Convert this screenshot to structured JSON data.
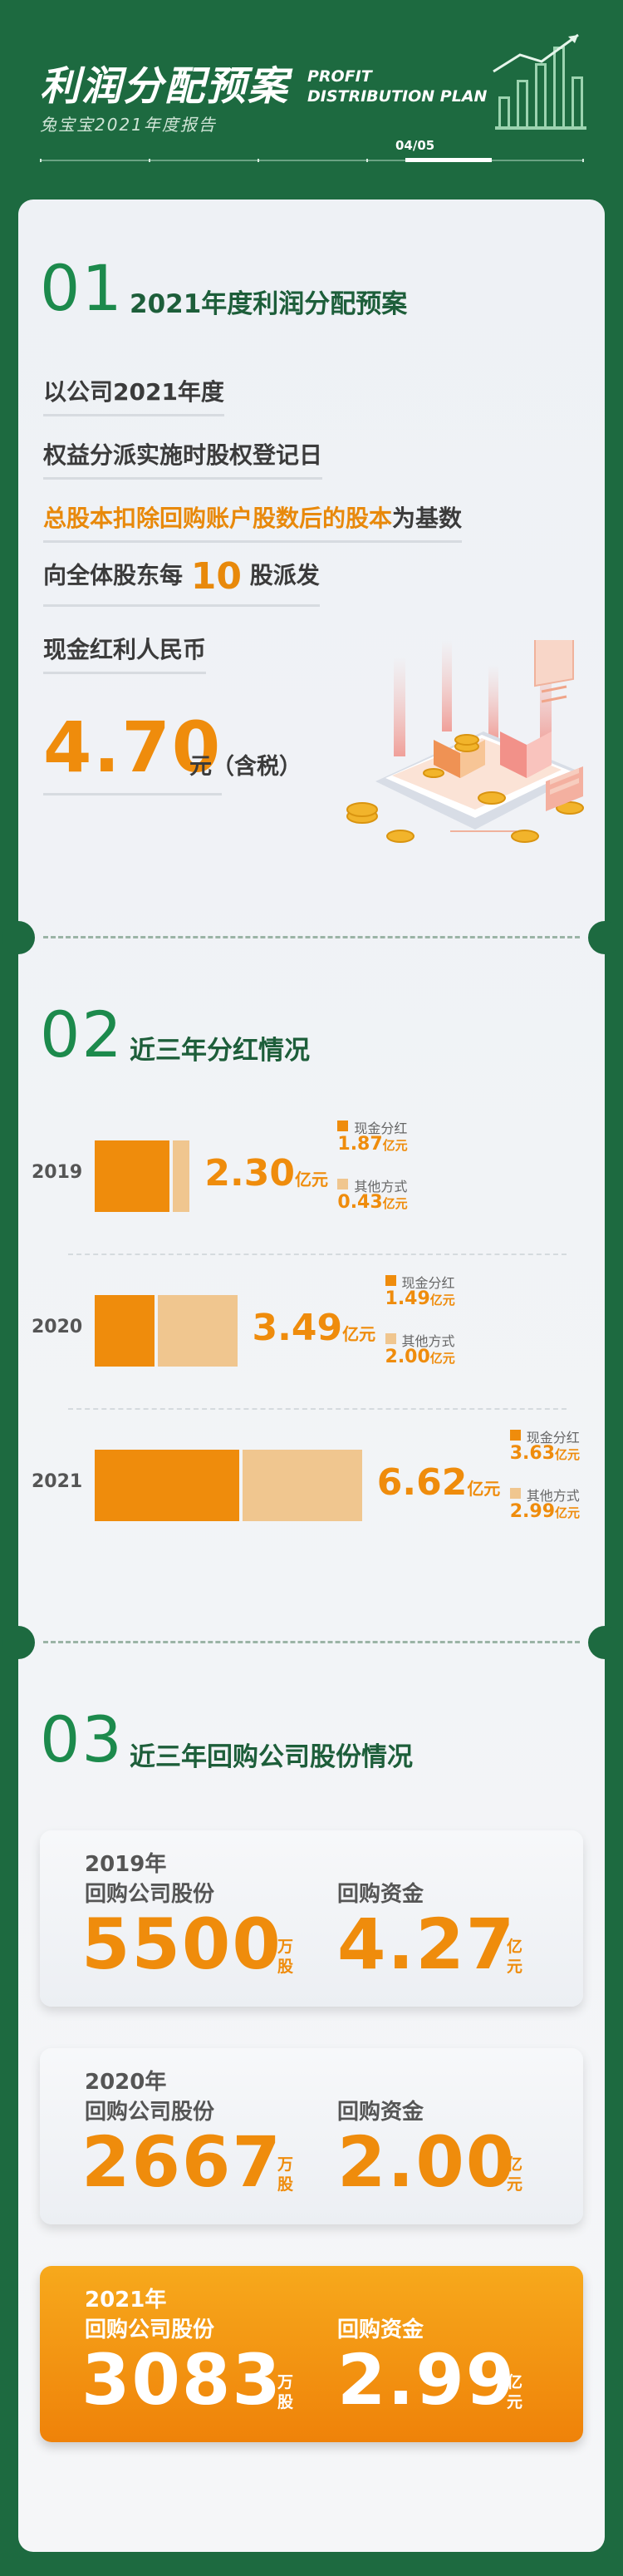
{
  "header": {
    "title": "利润分配预案",
    "title_en_line1": "PROFIT",
    "title_en_line2": "DISTRIBUTION PLAN",
    "subtitle": "兔宝宝2021年度报告",
    "page": "04/05"
  },
  "section1": {
    "number": "01",
    "title": "2021年度利润分配预案",
    "line1": "以公司2021年度",
    "line2": "权益分派实施时股权登记日",
    "line3_highlight": "总股本扣除回购账户股数后的股本",
    "line3_rest": "为基数",
    "line4_pre": "向全体股东每",
    "line4_num": "10",
    "line4_post": "股派发",
    "line5": "现金红利人民币",
    "amount": "4.70",
    "amount_unit": "元（含税）"
  },
  "section2": {
    "number": "02",
    "title": "近三年分红情况",
    "legend_cash": "现金分红",
    "legend_other": "其他方式",
    "colors": {
      "cash": "#ef8c0c",
      "other": "#f0c68f"
    },
    "rows": [
      {
        "year": "2019",
        "total": "2.30",
        "cash": "1.87",
        "other": "0.43",
        "unit": "亿元"
      },
      {
        "year": "2020",
        "total": "3.49",
        "cash": "1.49",
        "other": "2.00",
        "unit": "亿元"
      },
      {
        "year": "2021",
        "total": "6.62",
        "cash": "3.63",
        "other": "2.99",
        "unit": "亿元"
      }
    ]
  },
  "section3": {
    "number": "03",
    "title": "近三年回购公司股份情况",
    "label_shares": "回购公司股份",
    "label_funds": "回购资金",
    "unit_shares": "万股",
    "unit_funds": "亿元",
    "boxes": [
      {
        "year": "2019年",
        "shares": "5500",
        "funds": "4.27"
      },
      {
        "year": "2020年",
        "shares": "2667",
        "funds": "2.00"
      },
      {
        "year": "2021年",
        "shares": "3083",
        "funds": "2.99"
      }
    ]
  }
}
